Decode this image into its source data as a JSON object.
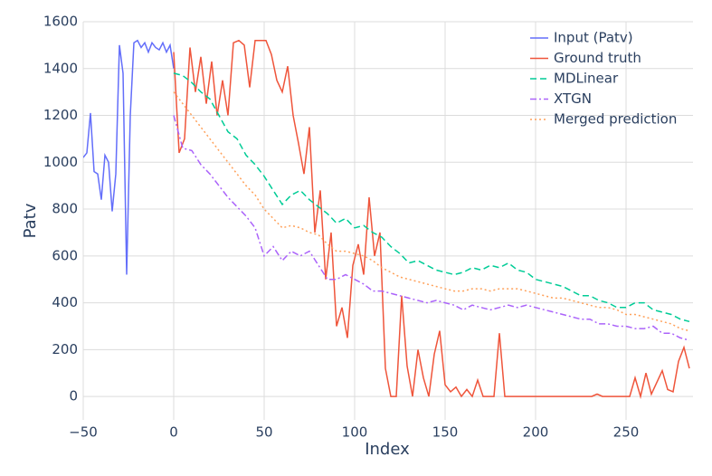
{
  "chart_data": {
    "type": "line",
    "x_label": "Index",
    "y_label": "Patv",
    "xlim": [
      -50,
      287
    ],
    "ylim": [
      -100,
      1600
    ],
    "xticks": [
      {
        "value": -50,
        "label": "−50"
      },
      0,
      50,
      100,
      150,
      200,
      250
    ],
    "yticks": [
      0,
      200,
      400,
      600,
      800,
      1000,
      1200,
      1400,
      1600
    ],
    "grid": true,
    "legend": "top-right",
    "series": [
      {
        "name": "Input (Patv)",
        "color": "#636efa",
        "dash": "solid",
        "x": [
          -50,
          -48,
          -46,
          -44,
          -42,
          -40,
          -38,
          -36,
          -34,
          -32,
          -30,
          -28,
          -26,
          -24,
          -22,
          -20,
          -18,
          -16,
          -14,
          -12,
          -10,
          -8,
          -6,
          -4,
          -2,
          0
        ],
        "values": [
          1020,
          1040,
          1210,
          960,
          950,
          840,
          1030,
          1000,
          790,
          950,
          1500,
          1380,
          520,
          1200,
          1510,
          1520,
          1490,
          1510,
          1470,
          1510,
          1490,
          1480,
          1510,
          1470,
          1500,
          1400
        ]
      },
      {
        "name": "Ground truth",
        "color": "#ef553b",
        "dash": "solid",
        "x": [
          0,
          3,
          6,
          9,
          12,
          15,
          18,
          21,
          24,
          27,
          30,
          33,
          36,
          39,
          42,
          45,
          48,
          51,
          54,
          57,
          60,
          63,
          66,
          69,
          72,
          75,
          78,
          81,
          84,
          87,
          90,
          93,
          96,
          99,
          102,
          105,
          108,
          111,
          114,
          117,
          120,
          123,
          126,
          129,
          132,
          135,
          138,
          141,
          144,
          147,
          150,
          153,
          156,
          159,
          162,
          165,
          168,
          171,
          174,
          177,
          180,
          183,
          186,
          189,
          192,
          195,
          198,
          201,
          204,
          207,
          210,
          213,
          216,
          219,
          222,
          225,
          228,
          231,
          234,
          237,
          240,
          243,
          246,
          249,
          252,
          255,
          258,
          261,
          264,
          267,
          270,
          273,
          276,
          279,
          282,
          285
        ],
        "values": [
          1470,
          1040,
          1100,
          1490,
          1300,
          1450,
          1250,
          1430,
          1200,
          1350,
          1200,
          1510,
          1520,
          1500,
          1320,
          1520,
          1520,
          1520,
          1460,
          1350,
          1300,
          1410,
          1200,
          1080,
          950,
          1150,
          700,
          880,
          500,
          700,
          300,
          380,
          250,
          560,
          650,
          520,
          850,
          600,
          700,
          120,
          0,
          0,
          430,
          130,
          0,
          200,
          80,
          0,
          180,
          280,
          50,
          20,
          40,
          0,
          30,
          0,
          70,
          0,
          0,
          0,
          270,
          0,
          0,
          0,
          0,
          0,
          0,
          0,
          0,
          0,
          0,
          0,
          0,
          0,
          0,
          0,
          0,
          0,
          10,
          0,
          0,
          0,
          0,
          0,
          0,
          80,
          0,
          100,
          10,
          60,
          110,
          30,
          20,
          150,
          210,
          120
        ]
      },
      {
        "name": "MDLinear",
        "color": "#00cc96",
        "dash": "dash",
        "x": [
          0,
          5,
          10,
          15,
          20,
          25,
          30,
          35,
          40,
          45,
          50,
          55,
          60,
          65,
          70,
          75,
          80,
          85,
          90,
          95,
          100,
          105,
          110,
          115,
          120,
          125,
          130,
          135,
          140,
          145,
          150,
          155,
          160,
          165,
          170,
          175,
          180,
          185,
          190,
          195,
          200,
          205,
          210,
          215,
          220,
          225,
          230,
          235,
          240,
          245,
          250,
          255,
          260,
          265,
          270,
          275,
          280,
          285
        ],
        "values": [
          1380,
          1370,
          1340,
          1300,
          1270,
          1200,
          1130,
          1100,
          1030,
          990,
          940,
          880,
          820,
          860,
          880,
          840,
          810,
          780,
          740,
          760,
          720,
          730,
          700,
          680,
          640,
          610,
          570,
          580,
          560,
          540,
          530,
          520,
          530,
          550,
          540,
          560,
          550,
          570,
          540,
          530,
          500,
          490,
          480,
          470,
          450,
          430,
          430,
          410,
          400,
          380,
          380,
          400,
          400,
          370,
          360,
          350,
          330,
          320
        ]
      },
      {
        "name": "XTGN",
        "color": "#ab63fa",
        "dash": "dashdot",
        "x": [
          0,
          5,
          10,
          15,
          20,
          25,
          30,
          35,
          40,
          45,
          50,
          55,
          60,
          65,
          70,
          75,
          80,
          85,
          90,
          95,
          100,
          105,
          110,
          115,
          120,
          125,
          130,
          135,
          140,
          145,
          150,
          155,
          160,
          165,
          170,
          175,
          180,
          185,
          190,
          195,
          200,
          205,
          210,
          215,
          220,
          225,
          230,
          235,
          240,
          245,
          250,
          255,
          260,
          265,
          270,
          275,
          280,
          285
        ],
        "values": [
          1200,
          1060,
          1050,
          990,
          950,
          900,
          850,
          810,
          770,
          720,
          600,
          640,
          580,
          620,
          600,
          620,
          560,
          500,
          500,
          520,
          500,
          480,
          450,
          450,
          440,
          430,
          420,
          410,
          400,
          410,
          400,
          390,
          370,
          390,
          380,
          370,
          380,
          390,
          380,
          390,
          380,
          370,
          360,
          350,
          340,
          330,
          330,
          310,
          310,
          300,
          300,
          290,
          290,
          300,
          270,
          270,
          250,
          240
        ]
      },
      {
        "name": "Merged prediction",
        "color": "#ffa15a",
        "dash": "dot",
        "x": [
          0,
          5,
          10,
          15,
          20,
          25,
          30,
          35,
          40,
          45,
          50,
          55,
          60,
          65,
          70,
          75,
          80,
          85,
          90,
          95,
          100,
          105,
          110,
          115,
          120,
          125,
          130,
          135,
          140,
          145,
          150,
          155,
          160,
          165,
          170,
          175,
          180,
          185,
          190,
          195,
          200,
          205,
          210,
          215,
          220,
          225,
          230,
          235,
          240,
          245,
          250,
          255,
          260,
          265,
          270,
          275,
          280,
          285
        ],
        "values": [
          1300,
          1250,
          1200,
          1150,
          1100,
          1050,
          1000,
          950,
          900,
          860,
          800,
          760,
          720,
          730,
          720,
          700,
          690,
          650,
          620,
          620,
          610,
          600,
          580,
          550,
          530,
          510,
          500,
          490,
          480,
          470,
          460,
          450,
          450,
          460,
          460,
          450,
          460,
          460,
          460,
          450,
          440,
          430,
          420,
          420,
          410,
          400,
          390,
          380,
          380,
          370,
          350,
          350,
          340,
          330,
          320,
          310,
          290,
          280
        ]
      }
    ]
  }
}
